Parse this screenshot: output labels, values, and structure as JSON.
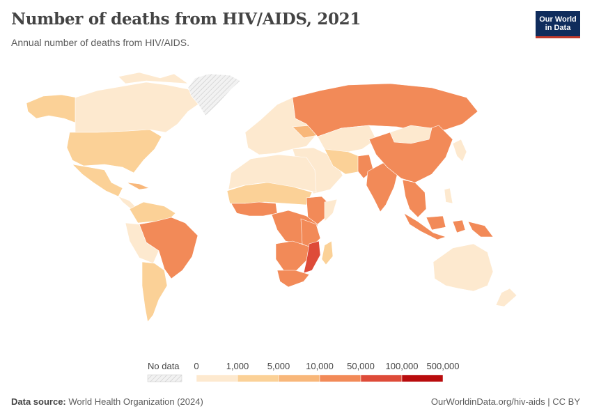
{
  "header": {
    "title": "Number of deaths from HIV/AIDS, 2021",
    "subtitle": "Annual number of deaths from HIV/AIDS.",
    "logo_line1": "Our World",
    "logo_line2": "in Data"
  },
  "legend": {
    "no_data_label": "No data",
    "ticks": [
      "0",
      "1,000",
      "5,000",
      "10,000",
      "50,000",
      "100,000",
      "500,000"
    ],
    "bins": [
      {
        "from": 0,
        "to": 1000,
        "color": "#fde9cf"
      },
      {
        "from": 1000,
        "to": 5000,
        "color": "#fbd197"
      },
      {
        "from": 5000,
        "to": 10000,
        "color": "#f8b77a"
      },
      {
        "from": 10000,
        "to": 50000,
        "color": "#f28a58"
      },
      {
        "from": 50000,
        "to": 100000,
        "color": "#de4b39"
      },
      {
        "from": 100000,
        "to": 500000,
        "color": "#b90c0d"
      }
    ],
    "no_data_color": "#e6e6e6"
  },
  "map_data": {
    "year": 2021,
    "regions": [
      {
        "name": "Canada",
        "bin": "0-1,000"
      },
      {
        "name": "United States",
        "bin": "1,000-5,000"
      },
      {
        "name": "Mexico",
        "bin": "1,000-5,000"
      },
      {
        "name": "Brazil",
        "bin": "10,000-50,000"
      },
      {
        "name": "Russia",
        "bin": "10,000-50,000"
      },
      {
        "name": "China",
        "bin": "10,000-50,000"
      },
      {
        "name": "India",
        "bin": "10,000-50,000"
      },
      {
        "name": "Indonesia",
        "bin": "10,000-50,000"
      },
      {
        "name": "Australia",
        "bin": "0-1,000"
      },
      {
        "name": "Mozambique",
        "bin": "50,000-100,000"
      },
      {
        "name": "South Africa",
        "bin": "10,000-50,000"
      },
      {
        "name": "Nigeria",
        "bin": "10,000-50,000"
      },
      {
        "name": "Greenland",
        "bin": "No data"
      }
    ]
  },
  "footer": {
    "source_label": "Data source:",
    "source_text": "World Health Organization (2024)",
    "link_text": "OurWorldinData.org/hiv-aids | CC BY"
  }
}
